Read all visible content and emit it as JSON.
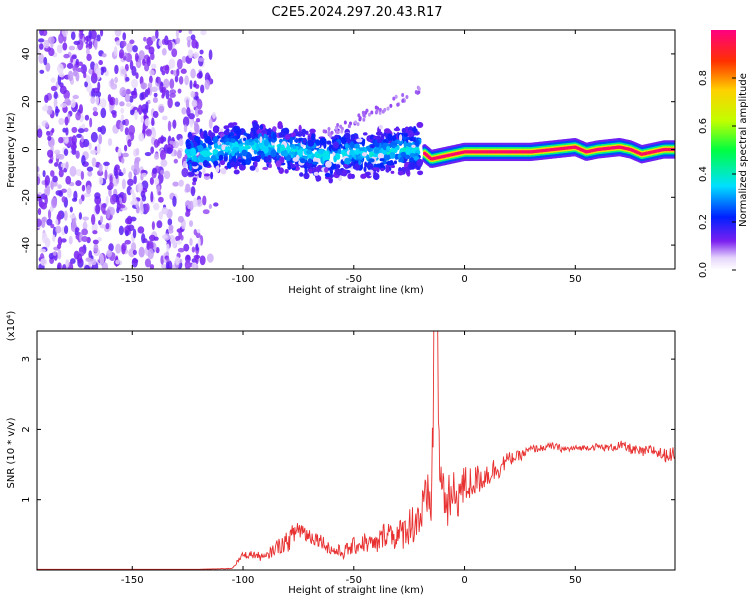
{
  "title": "C2E5.2024.297.20.43.R17",
  "colors": {
    "spectrum_purple": "#6a00e8",
    "spectrum_light": "#c9b0f5",
    "snr_line": "#e83030"
  },
  "colorbar": {
    "label": "Normalized spectral amplitude",
    "ticks": [
      "0.0",
      "0.2",
      "0.4",
      "0.6",
      "0.8"
    ]
  },
  "chart_data": [
    {
      "type": "heatmap",
      "title": "",
      "xlabel": "Height of straight line (km)",
      "ylabel": "Frequency (Hz)",
      "xlim": [
        -193,
        95
      ],
      "ylim": [
        -50,
        50
      ],
      "x_ticks": [
        "-150",
        "-100",
        "-50",
        "0",
        "50"
      ],
      "y_ticks": [
        "40",
        "20",
        "0",
        "-20",
        "-40"
      ],
      "colorscale": "rainbow",
      "zlim": [
        0,
        1
      ],
      "regions": [
        {
          "x": [
            -193,
            -118
          ],
          "frequency_range": [
            -50,
            50
          ],
          "amplitude": 0.05,
          "description_note": "noise"
        },
        {
          "x": [
            -125,
            -20
          ],
          "frequency_center": 0,
          "frequency_spread": 10,
          "amplitude": 0.35
        },
        {
          "x": [
            -18,
            95
          ],
          "frequency_center": -1,
          "frequency_spread": 3,
          "amplitude": 0.95
        }
      ],
      "ridge": [
        {
          "x": -120,
          "f": -2
        },
        {
          "x": -110,
          "f": 0
        },
        {
          "x": -100,
          "f": 1
        },
        {
          "x": -90,
          "f": 2
        },
        {
          "x": -80,
          "f": 0
        },
        {
          "x": -70,
          "f": -2
        },
        {
          "x": -60,
          "f": -3
        },
        {
          "x": -50,
          "f": -1
        },
        {
          "x": -40,
          "f": -2
        },
        {
          "x": -30,
          "f": 0
        },
        {
          "x": -20,
          "f": 0
        },
        {
          "x": -15,
          "f": -4
        },
        {
          "x": -10,
          "f": -3
        },
        {
          "x": 0,
          "f": -1
        },
        {
          "x": 10,
          "f": -1
        },
        {
          "x": 20,
          "f": -1
        },
        {
          "x": 30,
          "f": -1
        },
        {
          "x": 40,
          "f": 0
        },
        {
          "x": 50,
          "f": 1
        },
        {
          "x": 55,
          "f": -1
        },
        {
          "x": 60,
          "f": 0
        },
        {
          "x": 70,
          "f": 1
        },
        {
          "x": 75,
          "f": 0
        },
        {
          "x": 80,
          "f": -2
        },
        {
          "x": 85,
          "f": -1
        },
        {
          "x": 90,
          "f": 0
        },
        {
          "x": 95,
          "f": 0
        }
      ]
    },
    {
      "type": "line",
      "title": "",
      "xlabel": "Height of straight line (km)",
      "ylabel": "SNR (10 * v/v)",
      "y_multiplier": "(x10⁴)",
      "xlim": [
        -193,
        95
      ],
      "ylim": [
        0,
        3.4
      ],
      "x_ticks": [
        "-150",
        "-100",
        "-50",
        "0",
        "50"
      ],
      "y_ticks": [
        "3",
        "2",
        "1"
      ],
      "series": [
        {
          "x": [
            -193,
            -150,
            -120,
            -105,
            -100,
            -95,
            -90,
            -85,
            -80,
            -75,
            -70,
            -65,
            -60,
            -55,
            -50,
            -45,
            -40,
            -35,
            -30,
            -25,
            -20,
            -15,
            -13,
            -11,
            -8,
            -5,
            0,
            5,
            10,
            15,
            20,
            25,
            30,
            35,
            40,
            45,
            50,
            55,
            60,
            65,
            70,
            75,
            80,
            85,
            90,
            95
          ],
          "y": [
            0.01,
            0.01,
            0.01,
            0.02,
            0.2,
            0.2,
            0.15,
            0.3,
            0.35,
            0.55,
            0.45,
            0.4,
            0.25,
            0.22,
            0.3,
            0.35,
            0.3,
            0.5,
            0.4,
            0.55,
            0.65,
            0.9,
            3.4,
            1.2,
            0.8,
            0.9,
            1.1,
            1.2,
            1.3,
            1.4,
            1.55,
            1.6,
            1.7,
            1.72,
            1.75,
            1.7,
            1.72,
            1.73,
            1.74,
            1.72,
            1.75,
            1.7,
            1.65,
            1.68,
            1.6,
            1.62
          ],
          "noise_amplitude": [
            0,
            0,
            0,
            0.01,
            0.1,
            0.12,
            0.12,
            0.2,
            0.3,
            0.35,
            0.25,
            0.2,
            0.2,
            0.2,
            0.25,
            0.3,
            0.3,
            0.4,
            0.45,
            0.55,
            0.8,
            0.9,
            0.5,
            0.8,
            0.8,
            0.8,
            0.6,
            0.45,
            0.4,
            0.35,
            0.2,
            0.15,
            0.12,
            0.1,
            0.1,
            0.1,
            0.08,
            0.08,
            0.1,
            0.1,
            0.15,
            0.15,
            0.15,
            0.18,
            0.2,
            0.2
          ]
        }
      ]
    }
  ]
}
